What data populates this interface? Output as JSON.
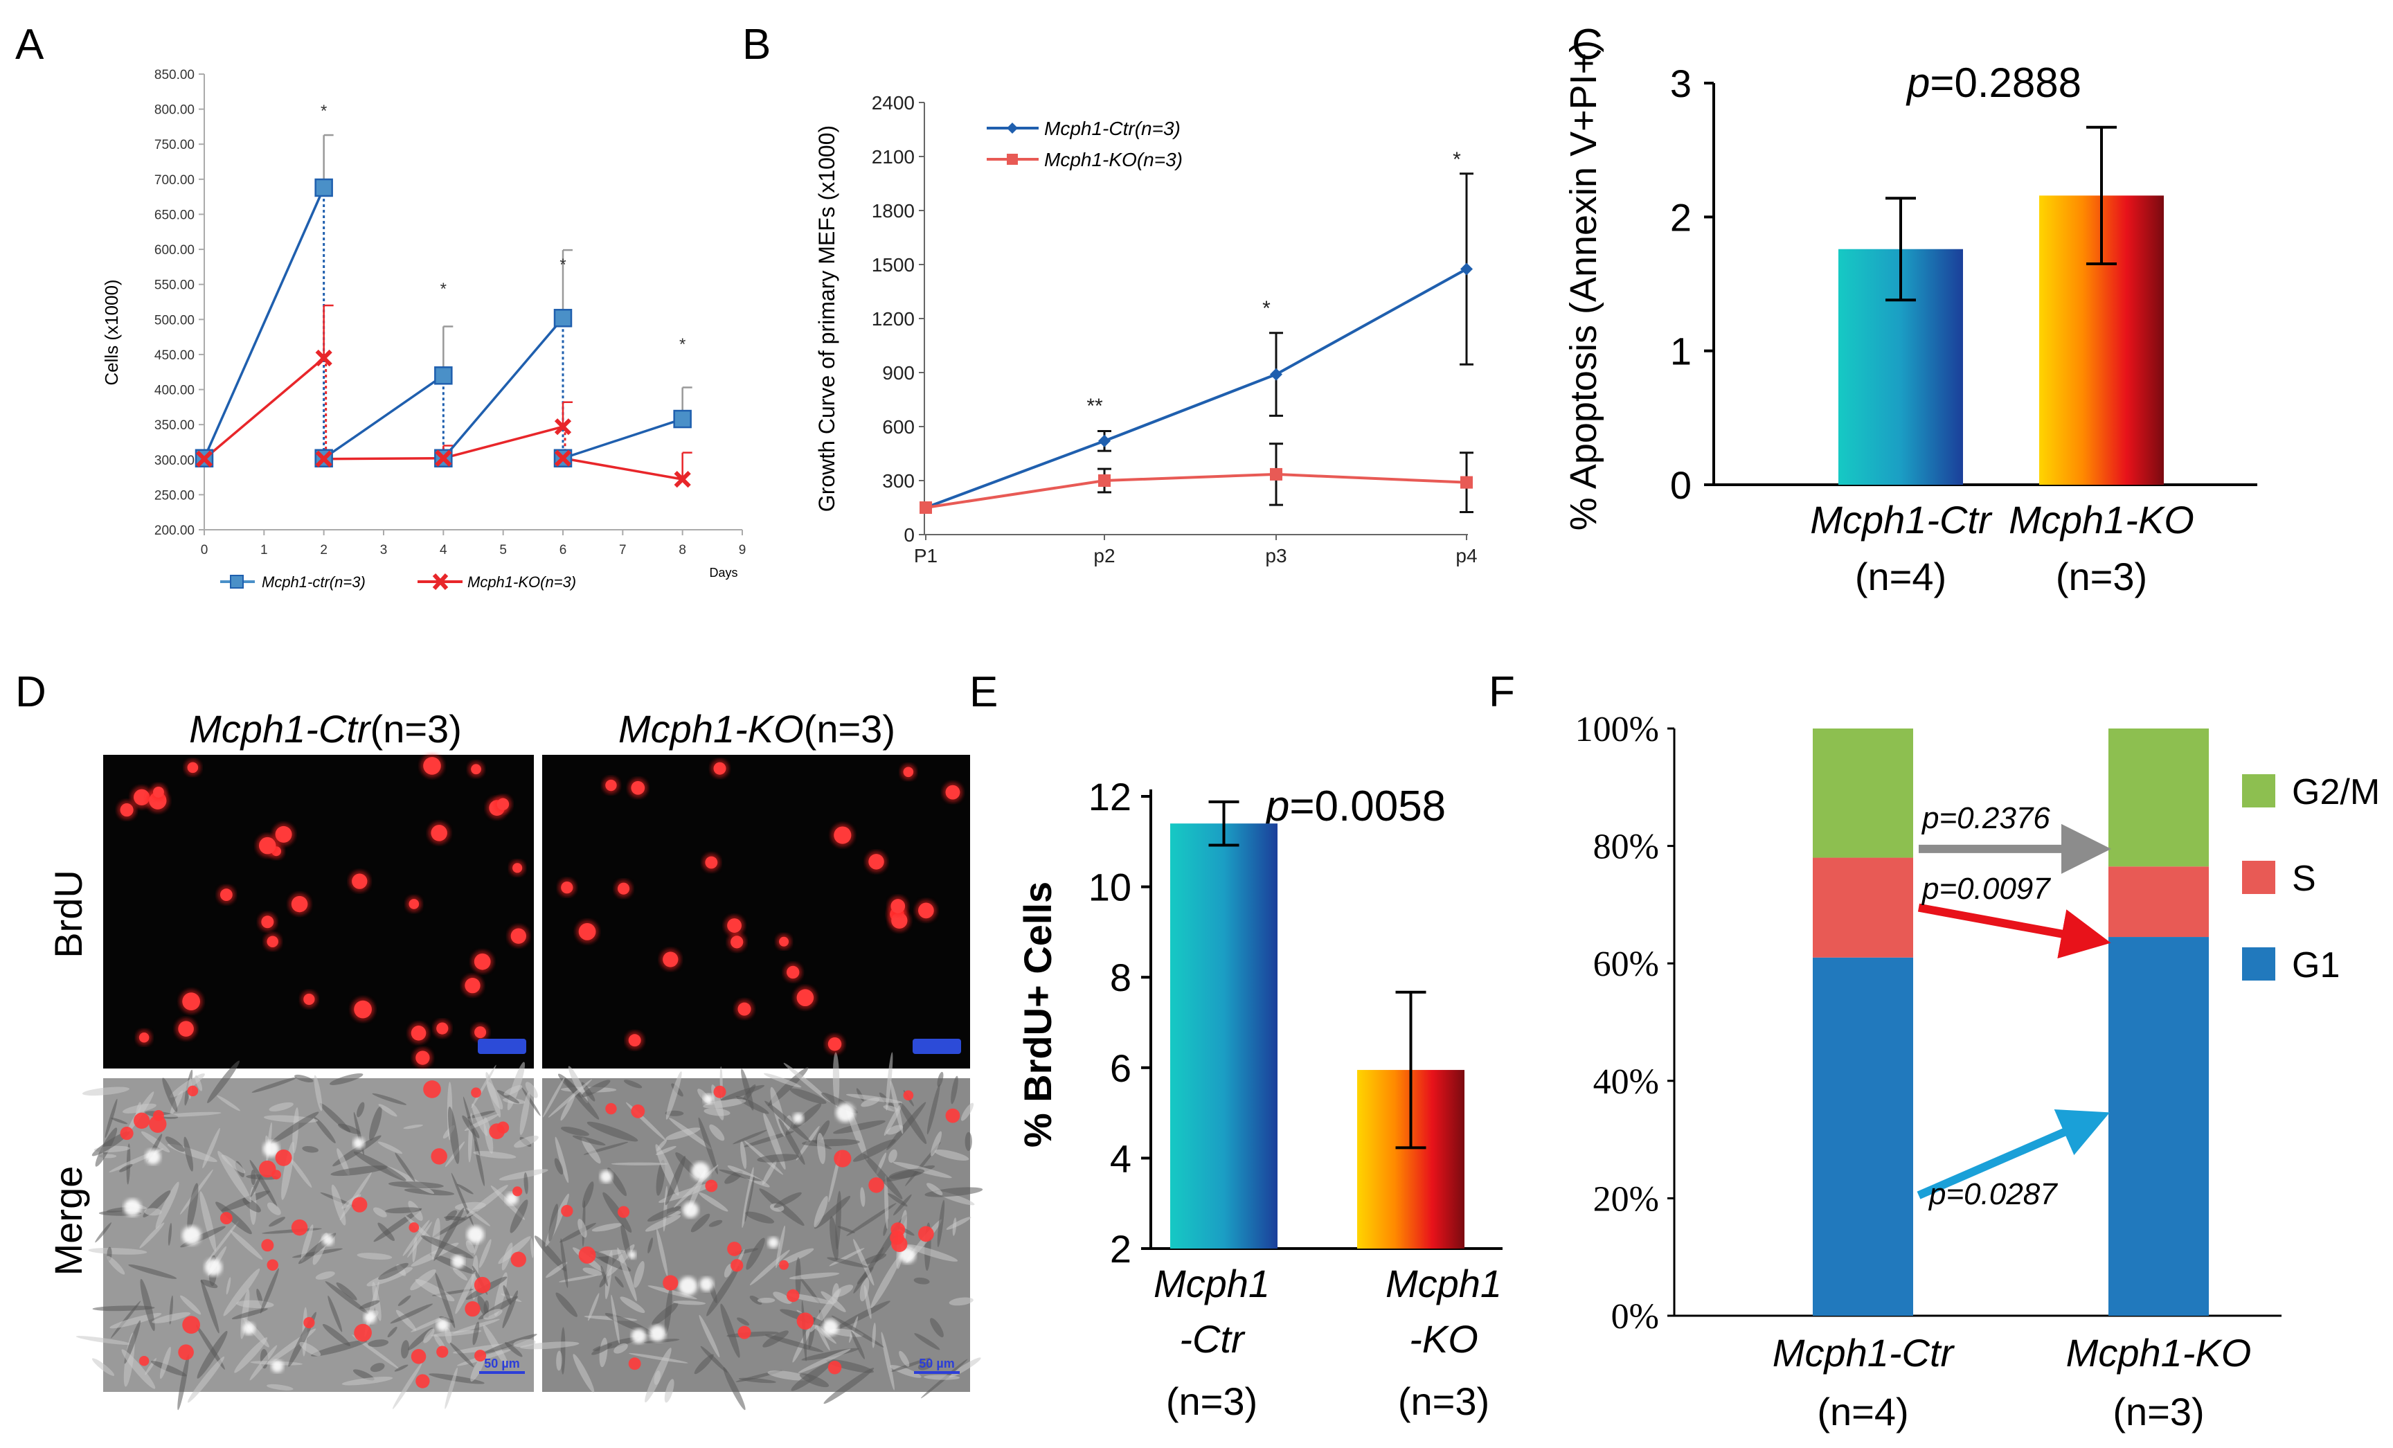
{
  "panels": {
    "A": "A",
    "B": "B",
    "C": "C",
    "D": "D",
    "E": "E",
    "F": "F"
  },
  "colors": {
    "blue": "#1f5fae",
    "lightblue": "#4a90c8",
    "red": "#e8262a",
    "salmon": "#e85a55",
    "green": "#8dbf50",
    "g1blue": "#2179bd",
    "gray": "#8c8c8c"
  },
  "panel_d": {
    "col_labels": [
      {
        "italic": "Mcph1-Ctr",
        "rest": "(n=3)"
      },
      {
        "italic": "Mcph1-KO",
        "rest": "(n=3)"
      }
    ],
    "row_labels": [
      "BrdU",
      "Merge"
    ],
    "scale_bar_labels": [
      "50 µm",
      "50 µm"
    ]
  },
  "chart_data": [
    {
      "panel": "A",
      "type": "line",
      "title": "",
      "xlabel": "Days",
      "ylabel": "Cells  (x1000)",
      "xlim": [
        0,
        9
      ],
      "ylim": [
        200,
        850
      ],
      "xticks": [
        "0",
        "1",
        "2",
        "3",
        "4",
        "5",
        "6",
        "7",
        "8",
        "9"
      ],
      "yticks": [
        "200.00",
        "250.00",
        "300.00",
        "350.00",
        "400.00",
        "450.00",
        "500.00",
        "550.00",
        "600.00",
        "650.00",
        "700.00",
        "750.00",
        "800.00",
        "850.00"
      ],
      "legend": [
        "Mcph1-ctr(n=3)",
        "Mcph1-KO(n=3)"
      ],
      "legend_position": "bottom",
      "series": [
        {
          "name": "Mcph1-ctr(n=3)",
          "x": [
            0,
            2,
            2,
            4,
            4,
            6,
            6,
            8
          ],
          "values": [
            302,
            688,
            302,
            420,
            302,
            502,
            302,
            358
          ],
          "errors_up": [
            0,
            75,
            0,
            70,
            0,
            97,
            0,
            45
          ]
        },
        {
          "name": "Mcph1-KO(n=3)",
          "x": [
            0,
            2,
            2,
            4,
            4,
            6,
            6,
            8
          ],
          "values": [
            301,
            445,
            301,
            302,
            302,
            347,
            302,
            272
          ],
          "errors_up": [
            0,
            75,
            0,
            18,
            0,
            35,
            0,
            38
          ]
        }
      ],
      "significance": [
        {
          "x": 2,
          "label": "*"
        },
        {
          "x": 4,
          "label": "*"
        },
        {
          "x": 6,
          "label": "*"
        },
        {
          "x": 8,
          "label": "*"
        }
      ]
    },
    {
      "panel": "B",
      "type": "line",
      "xlabel": "",
      "ylabel": "Growth Curve of primary  MEFs (x1000)",
      "categories": [
        "P1",
        "p2",
        "p3",
        "p4"
      ],
      "ylim": [
        0,
        2400
      ],
      "yticks": [
        "0",
        "300",
        "600",
        "900",
        "1200",
        "1500",
        "1800",
        "2100",
        "2400"
      ],
      "legend": [
        "Mcph1-Ctr(n=3)",
        "Mcph1-KO(n=3)"
      ],
      "legend_position": "top-left",
      "series": [
        {
          "name": "Mcph1-Ctr(n=3)",
          "values": [
            150,
            520,
            890,
            1475
          ],
          "errors": [
            0,
            55,
            230,
            530
          ]
        },
        {
          "name": "Mcph1-KO(n=3)",
          "values": [
            150,
            300,
            335,
            290
          ],
          "errors": [
            0,
            65,
            170,
            165
          ]
        }
      ],
      "significance": [
        {
          "category": "p2",
          "label": "**"
        },
        {
          "category": "p3",
          "label": "*"
        },
        {
          "category": "p4",
          "label": "*"
        }
      ]
    },
    {
      "panel": "C",
      "type": "bar",
      "annotation": "p=0.2888",
      "ylabel": "% Apoptosis (Annexin V+PI+)",
      "ylim": [
        0,
        3
      ],
      "yticks": [
        "0",
        "1",
        "2",
        "3"
      ],
      "categories": [
        {
          "italic": "Mcph1-Ctr",
          "n": "(n=4)"
        },
        {
          "italic": "Mcph1-KO",
          "n": "(n=3)"
        }
      ],
      "values": [
        1.76,
        2.16
      ],
      "errors": [
        0.38,
        0.51
      ]
    },
    {
      "panel": "E",
      "type": "bar",
      "annotation": "p=0.0058",
      "ylabel": "% BrdU+  Cells",
      "ylim": [
        2,
        12
      ],
      "yticks": [
        "2",
        "4",
        "6",
        "8",
        "10",
        "12"
      ],
      "categories": [
        {
          "line1": "Mcph1",
          "line2": "-Ctr",
          "n": "(n=3)"
        },
        {
          "line1": "Mcph1",
          "line2": "-KO",
          "n": "(n=3)"
        }
      ],
      "values": [
        11.4,
        5.95
      ],
      "errors": [
        0.48,
        1.72
      ]
    },
    {
      "panel": "F",
      "type": "bar",
      "stacked": true,
      "ylim": [
        0,
        100
      ],
      "yticks": [
        "0%",
        "20%",
        "40%",
        "60%",
        "80%",
        "100%"
      ],
      "categories": [
        {
          "italic": "Mcph1-Ctr",
          "n": "(n=4)"
        },
        {
          "italic": "Mcph1-KO",
          "n": "(n=3)"
        }
      ],
      "series": [
        {
          "name": "G1",
          "values": [
            61,
            64.5
          ]
        },
        {
          "name": "S",
          "values": [
            17,
            12
          ]
        },
        {
          "name": "G2/M",
          "values": [
            22,
            23.5
          ]
        }
      ],
      "legend": [
        "G2/M",
        "S",
        "G1"
      ],
      "legend_position": "right",
      "annotations": [
        {
          "label": "p=0.2376",
          "series": "G2/M"
        },
        {
          "label": "p=0.0097",
          "series": "S"
        },
        {
          "label": "p=0.0287",
          "series": "G1"
        }
      ]
    }
  ]
}
